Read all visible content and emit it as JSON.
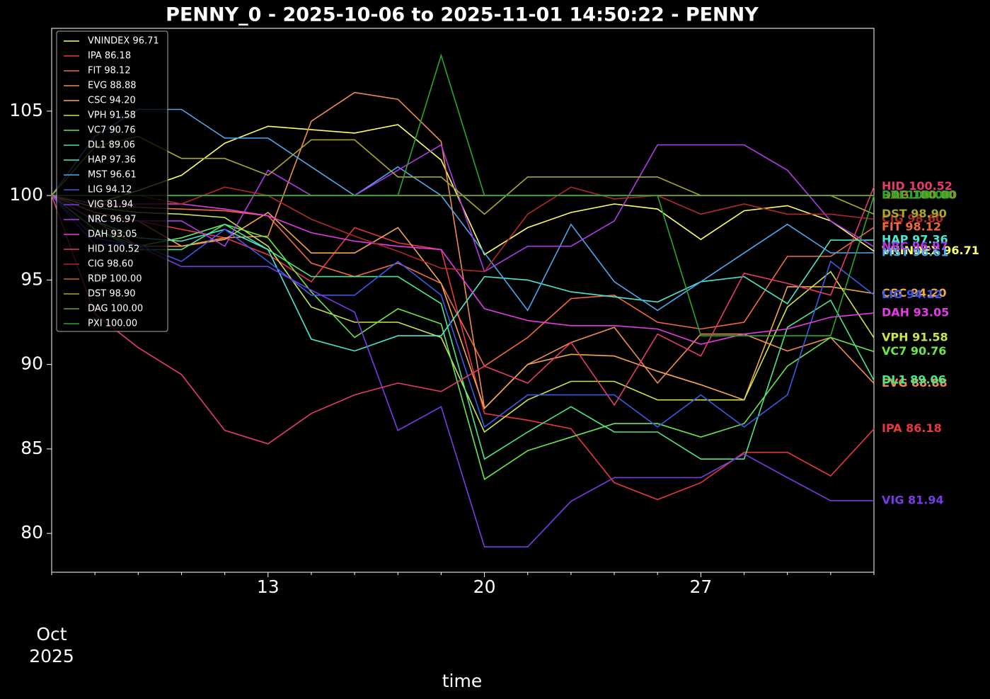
{
  "chart_data": {
    "type": "line",
    "title": "PENNY_0 - 2025-10-06 to 2025-11-01 14:50:22 - PENNY",
    "xlabel": "time",
    "x_offset_label": [
      "Oct",
      "2025"
    ],
    "categories": [
      null,
      null,
      null,
      null,
      null,
      "13",
      null,
      null,
      null,
      null,
      "20",
      null,
      null,
      null,
      null,
      "27",
      null,
      null,
      null,
      null
    ],
    "ylim": [
      77.7,
      109.9
    ],
    "yticks": [
      80,
      85,
      90,
      95,
      100,
      105
    ],
    "legend": "upper left",
    "grid": false,
    "series": [
      {
        "name": "VNINDEX 96.71",
        "color": "#ffff66",
        "values": [
          100,
          99.5,
          100.3,
          101.2,
          103.1,
          104.1,
          103.9,
          103.7,
          104.2,
          102.1,
          96.5,
          98.1,
          99,
          99.5,
          99.2,
          97.4,
          99.1,
          99.4,
          98.5,
          96.71
        ]
      },
      {
        "name": "IPA 86.18",
        "color": "#e8383d",
        "values": [
          100,
          99,
          98.5,
          98,
          97.5,
          96.5,
          94.9,
          98.1,
          97.2,
          96.8,
          87.1,
          86.7,
          86.2,
          83,
          82,
          83,
          84.8,
          84.8,
          83.4,
          86.18
        ]
      },
      {
        "name": "FIT 98.12",
        "color": "#f06a3c",
        "values": [
          100,
          99.5,
          99.3,
          99.2,
          99.1,
          98.8,
          96,
          95.2,
          96,
          94.8,
          89.9,
          91.6,
          93.9,
          94.1,
          92.5,
          92.1,
          92.5,
          96.4,
          96.4,
          98.12
        ]
      },
      {
        "name": "EVG 88.88",
        "color": "#f08c4a",
        "values": [
          100,
          98.5,
          97,
          97,
          97.5,
          97.6,
          104.4,
          106.1,
          105.7,
          103.2,
          87.4,
          90,
          91.3,
          92.2,
          88.9,
          91.8,
          91.8,
          90.8,
          91.6,
          88.88
        ]
      },
      {
        "name": "CSC 94.20",
        "color": "#f5a74a",
        "values": [
          100,
          99,
          98.5,
          97,
          97.4,
          99,
          96.6,
          96.6,
          98.1,
          94.8,
          87.4,
          90,
          90.6,
          90.5,
          89.6,
          88.8,
          87.9,
          94.6,
          94.6,
          94.2
        ]
      },
      {
        "name": "VPH 91.58",
        "color": "#c8e64a",
        "values": [
          100,
          99.3,
          99,
          98.9,
          98.7,
          97,
          93.4,
          92.5,
          92.5,
          91.6,
          86,
          87.9,
          89,
          89,
          87.9,
          87.9,
          87.9,
          93.4,
          95.5,
          91.58
        ]
      },
      {
        "name": "VC7 90.76",
        "color": "#6ae64a",
        "values": [
          100,
          98,
          97,
          97.5,
          98.3,
          97.5,
          94.3,
          91.6,
          93.3,
          92.4,
          83.2,
          84.9,
          85.7,
          86.5,
          86.5,
          85.7,
          86.5,
          89.9,
          91.6,
          90.76
        ]
      },
      {
        "name": "DL1 89.06",
        "color": "#4ae68a",
        "values": [
          100,
          98,
          96.8,
          96.8,
          98.3,
          96.8,
          95.2,
          95.2,
          95.2,
          93.6,
          84.4,
          86,
          87.5,
          86,
          86,
          84.4,
          84.4,
          92.2,
          93.8,
          89.06
        ]
      },
      {
        "name": "HAP 97.36",
        "color": "#4ae6d0",
        "values": [
          100,
          98.5,
          97.5,
          97.3,
          98,
          96.8,
          91.5,
          90.8,
          91.7,
          91.7,
          95.2,
          95,
          94.3,
          94,
          93.7,
          94.9,
          95.2,
          93.6,
          97.36,
          97.36
        ]
      },
      {
        "name": "MST 96.61",
        "color": "#4aaaf0",
        "values": [
          100,
          103.5,
          105.1,
          105.1,
          103.4,
          103.4,
          101.7,
          100,
          101.7,
          100,
          96.6,
          93.2,
          98.3,
          94.9,
          93.2,
          94.9,
          96.6,
          98.3,
          96.61,
          96.61
        ]
      },
      {
        "name": "LIG 94.12",
        "color": "#3a5ae6",
        "values": [
          100,
          97.1,
          97.1,
          96.1,
          98,
          96.1,
          94.1,
          94.1,
          96.1,
          94.1,
          86.3,
          88.2,
          88.2,
          88.2,
          86.3,
          88.2,
          86.3,
          88.2,
          96.1,
          94.12
        ]
      },
      {
        "name": "VIG 81.94",
        "color": "#7a3ae6",
        "values": [
          100,
          97.5,
          97,
          95.8,
          95.8,
          95.8,
          94.4,
          93.1,
          86.1,
          87.5,
          79.2,
          79.2,
          81.9,
          83.3,
          83.3,
          83.3,
          84.7,
          83.3,
          81.94,
          81.94
        ]
      },
      {
        "name": "NRC 96.97",
        "color": "#b03ae6",
        "values": [
          100,
          98.5,
          98.5,
          98.5,
          97,
          101.5,
          100,
          100,
          101.5,
          103,
          95.5,
          97,
          97,
          98.5,
          103,
          103,
          103,
          101.5,
          98.5,
          96.97
        ]
      },
      {
        "name": "DAH 93.05",
        "color": "#e63ae6",
        "values": [
          100,
          99.5,
          99.5,
          99.5,
          99.2,
          98.8,
          97.8,
          97.3,
          97,
          96.8,
          93.3,
          92.6,
          92.3,
          92.3,
          92.1,
          91.2,
          91.8,
          92.1,
          92.8,
          93.05
        ]
      },
      {
        "name": "HID 100.52",
        "color": "#e63a6a",
        "values": [
          100,
          93,
          91,
          89.4,
          86.1,
          85.3,
          87.1,
          88.2,
          88.9,
          88.4,
          89.9,
          88.9,
          91.3,
          87.6,
          91.8,
          90.5,
          95.4,
          94.8,
          94.1,
          100.52
        ]
      },
      {
        "name": "CIG 98.60",
        "color": "#b02828",
        "values": [
          100,
          100,
          100,
          99.5,
          100.5,
          100,
          98.6,
          97.6,
          96.7,
          95.7,
          95.5,
          98.9,
          100.5,
          99.8,
          100,
          98.9,
          99.5,
          98.9,
          98.9,
          98.6
        ]
      },
      {
        "name": "RDP 100.00",
        "color": "#c86428",
        "values": [
          100,
          100,
          100,
          100,
          100,
          100,
          100,
          100,
          100,
          100,
          100,
          100,
          100,
          100,
          100,
          100,
          100,
          100,
          100,
          100
        ]
      },
      {
        "name": "DST 98.90",
        "color": "#a8a828",
        "values": [
          100,
          102.9,
          103.5,
          102.2,
          102.2,
          101.2,
          103.3,
          103.3,
          101.1,
          101.1,
          98.9,
          101.1,
          101.1,
          101.1,
          101.1,
          100,
          100,
          100,
          100,
          98.9
        ]
      },
      {
        "name": "DAG 100.00",
        "color": "#64a828",
        "values": [
          100,
          100,
          100,
          100,
          100,
          100,
          100,
          100,
          100,
          100,
          100,
          100,
          100,
          100,
          100,
          100,
          100,
          100,
          100,
          100
        ]
      },
      {
        "name": "PXI 100.00",
        "color": "#28a828",
        "values": [
          100,
          100,
          100,
          100,
          100,
          100,
          100,
          100,
          100,
          108.3,
          100,
          100,
          100,
          100,
          100,
          91.7,
          91.7,
          91.7,
          91.7,
          100
        ]
      }
    ]
  }
}
